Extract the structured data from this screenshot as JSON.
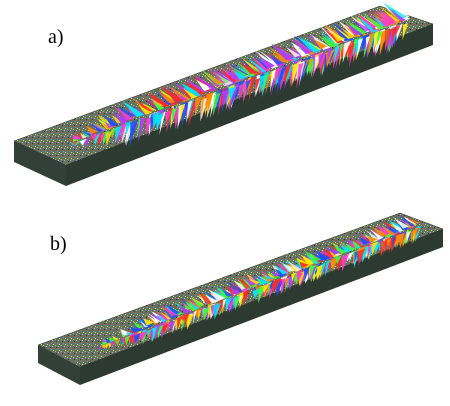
{
  "panels": [
    {
      "label": "a)"
    },
    {
      "label": "b)"
    }
  ],
  "colors": {
    "substrate_top": "#5f6b58",
    "substrate_side": "#2f3b33",
    "substrate_end": "#3a4a40",
    "grain_palette": [
      "#ff2a2a",
      "#ff8c00",
      "#ffe600",
      "#3cff3c",
      "#00e5ff",
      "#1e50ff",
      "#b43cff",
      "#ff3cc8",
      "#ffffff"
    ]
  }
}
